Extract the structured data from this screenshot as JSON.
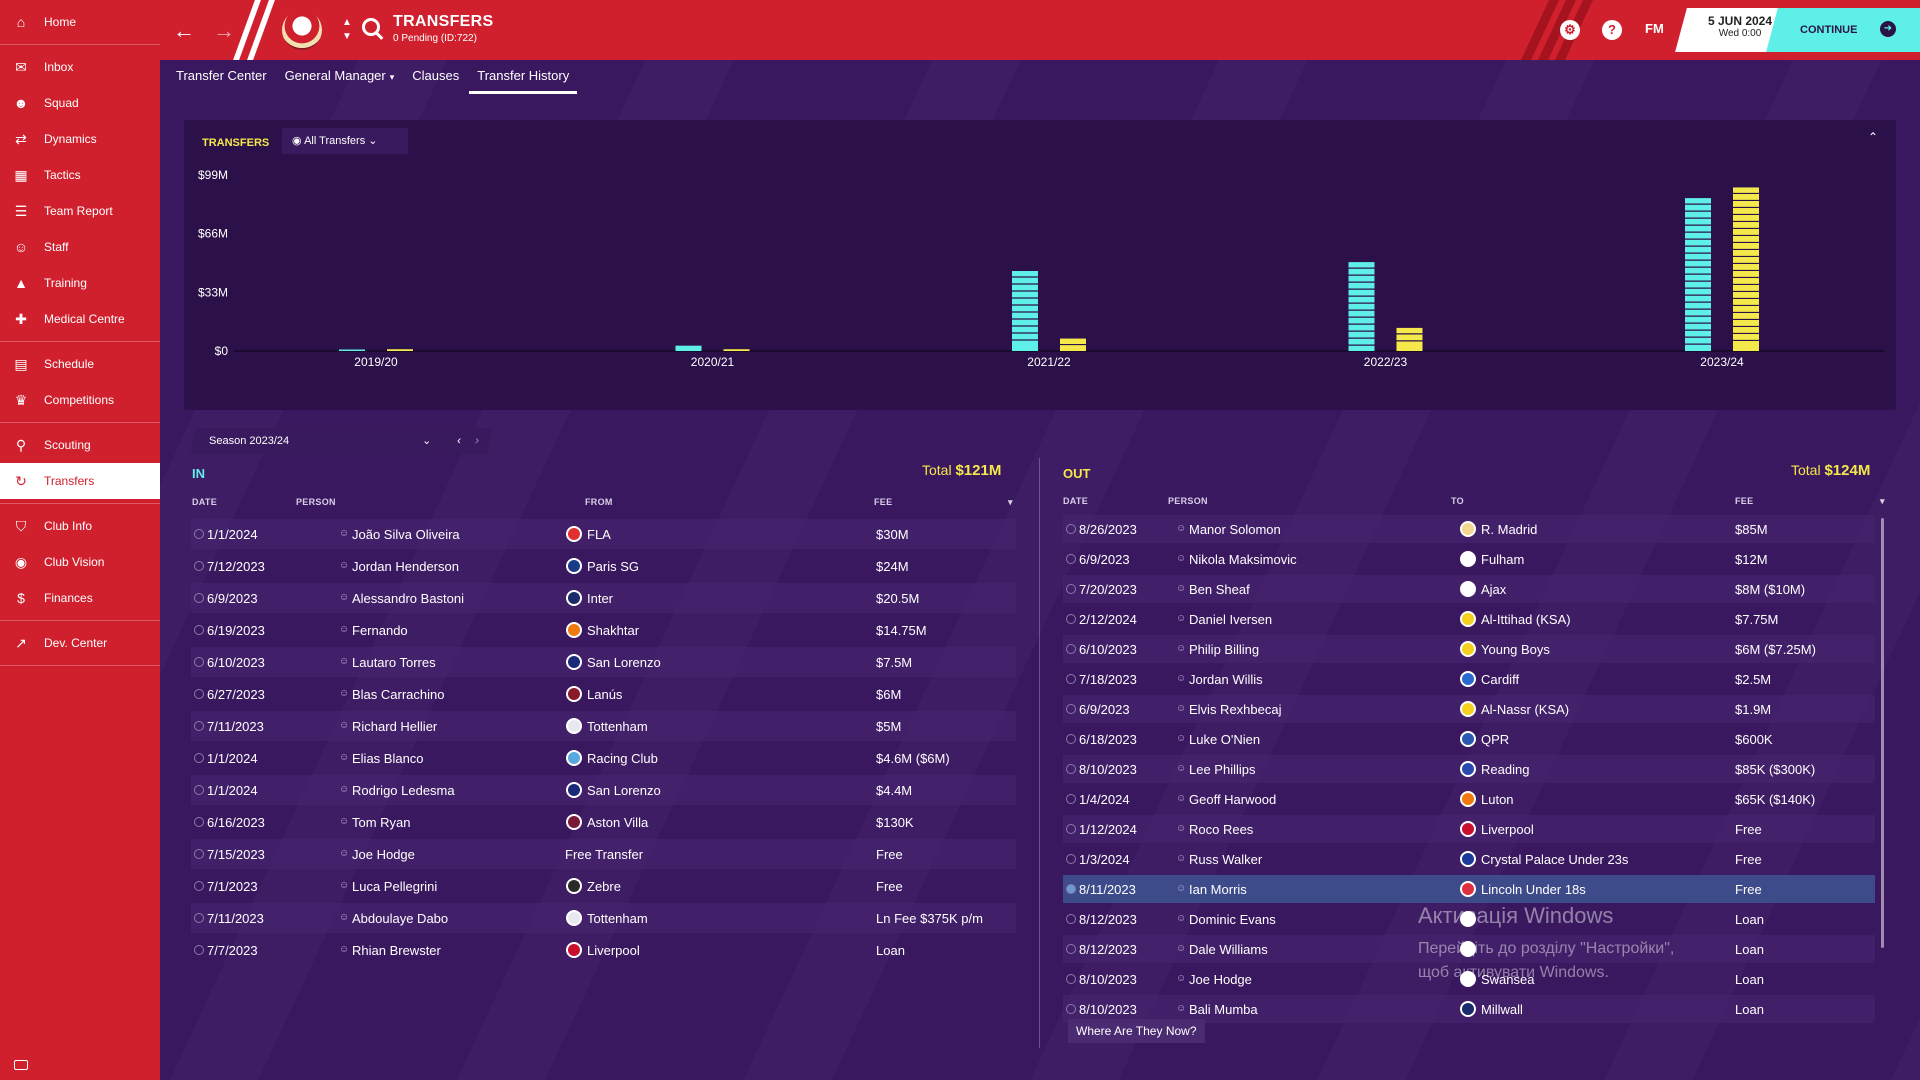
{
  "sidebar": {
    "groups": [
      [
        {
          "label": "Home",
          "icon": "home-icon"
        }
      ],
      [
        {
          "label": "Inbox",
          "icon": "inbox-icon"
        },
        {
          "label": "Squad",
          "icon": "squad-icon"
        },
        {
          "label": "Dynamics",
          "icon": "dynamics-icon"
        },
        {
          "label": "Tactics",
          "icon": "tactics-icon"
        },
        {
          "label": "Team Report",
          "icon": "report-icon"
        },
        {
          "label": "Staff",
          "icon": "staff-icon"
        },
        {
          "label": "Training",
          "icon": "training-icon"
        },
        {
          "label": "Medical Centre",
          "icon": "medical-icon"
        }
      ],
      [
        {
          "label": "Schedule",
          "icon": "calendar-icon"
        },
        {
          "label": "Competitions",
          "icon": "trophy-icon"
        }
      ],
      [
        {
          "label": "Scouting",
          "icon": "search-icon"
        },
        {
          "label": "Transfers",
          "icon": "transfers-icon",
          "active": true
        }
      ],
      [
        {
          "label": "Club Info",
          "icon": "shield-icon"
        },
        {
          "label": "Club Vision",
          "icon": "vision-icon"
        },
        {
          "label": "Finances",
          "icon": "money-icon"
        }
      ],
      [
        {
          "label": "Dev. Center",
          "icon": "growth-icon"
        }
      ]
    ]
  },
  "header": {
    "title": "TRANSFERS",
    "subtitle": "0 Pending (ID:722)",
    "fm_label": "FM",
    "date": "5 JUN 2024",
    "time": "Wed 0:00",
    "continue_label": "CONTINUE"
  },
  "tabs": [
    {
      "label": "Transfer Center",
      "dropdown": false
    },
    {
      "label": "General Manager",
      "dropdown": true
    },
    {
      "label": "Clauses",
      "dropdown": false
    },
    {
      "label": "Transfer History",
      "dropdown": false,
      "active": true
    }
  ],
  "chart_panel": {
    "title": "TRANSFERS",
    "filter_label": "All Transfers"
  },
  "chart_data": {
    "type": "bar",
    "categories": [
      "2019/20",
      "2020/21",
      "2021/22",
      "2022/23",
      "2023/24"
    ],
    "y_tick_labels": [
      "$99M",
      "$66M",
      "$33M",
      "$0"
    ],
    "ylim": [
      0,
      99
    ],
    "series": [
      {
        "color": "#5ef0e8",
        "values": [
          0.5,
          3,
          45,
          50,
          86
        ]
      },
      {
        "color": "#f4e84a",
        "values": [
          1,
          1,
          7,
          13,
          92
        ]
      }
    ]
  },
  "season": {
    "label": "Season 2023/24"
  },
  "in_table": {
    "title": "IN",
    "total_label": "Total",
    "total_value": "$121M",
    "columns": [
      "DATE",
      "PERSON",
      "FROM",
      "FEE"
    ],
    "rows": [
      {
        "date": "1/1/2024",
        "person": "João Silva Oliveira",
        "club": "FLA",
        "fee": "$30M",
        "club_color": "#e03030"
      },
      {
        "date": "7/12/2023",
        "person": "Jordan Henderson",
        "club": "Paris SG",
        "fee": "$24M",
        "club_color": "#1a3a8a"
      },
      {
        "date": "6/9/2023",
        "person": "Alessandro Bastoni",
        "club": "Inter",
        "fee": "$20.5M",
        "club_color": "#1a2a6a"
      },
      {
        "date": "6/19/2023",
        "person": "Fernando",
        "club": "Shakhtar",
        "fee": "$14.75M",
        "club_color": "#f07a10"
      },
      {
        "date": "6/10/2023",
        "person": "Lautaro Torres",
        "club": "San Lorenzo",
        "fee": "$7.5M",
        "club_color": "#1a2a7a"
      },
      {
        "date": "6/27/2023",
        "person": "Blas Carrachino",
        "club": "Lanús",
        "fee": "$6M",
        "club_color": "#8a1a2a"
      },
      {
        "date": "7/11/2023",
        "person": "Richard Hellier",
        "club": "Tottenham",
        "fee": "$5M",
        "club_color": "#e8e8f0"
      },
      {
        "date": "1/1/2024",
        "person": "Elias Blanco",
        "club": "Racing Club",
        "fee": "$4.6M ($6M)",
        "club_color": "#5aa8e0"
      },
      {
        "date": "1/1/2024",
        "person": "Rodrigo Ledesma",
        "club": "San Lorenzo",
        "fee": "$4.4M",
        "club_color": "#1a2a7a"
      },
      {
        "date": "6/16/2023",
        "person": "Tom Ryan",
        "club": "Aston Villa",
        "fee": "$130K",
        "club_color": "#7a1a3a"
      },
      {
        "date": "7/15/2023",
        "person": "Joe Hodge",
        "club": "Free Transfer",
        "fee": "Free",
        "club_color": ""
      },
      {
        "date": "7/1/2023",
        "person": "Luca Pellegrini",
        "club": "Zebre",
        "fee": "Free",
        "club_color": "#2a2a2a"
      },
      {
        "date": "7/11/2023",
        "person": "Abdoulaye Dabo",
        "club": "Tottenham",
        "fee": "Ln Fee $375K p/m",
        "club_color": "#e8e8f0"
      },
      {
        "date": "7/7/2023",
        "person": "Rhian Brewster",
        "club": "Liverpool",
        "fee": "Loan",
        "club_color": "#c8102e"
      }
    ]
  },
  "out_table": {
    "title": "OUT",
    "total_label": "Total",
    "total_value": "$124M",
    "columns": [
      "DATE",
      "PERSON",
      "TO",
      "FEE"
    ],
    "rows": [
      {
        "date": "8/26/2023",
        "person": "Manor Solomon",
        "club": "R. Madrid",
        "fee": "$85M",
        "club_color": "#f0d890"
      },
      {
        "date": "6/9/2023",
        "person": "Nikola Maksimovic",
        "club": "Fulham",
        "fee": "$12M",
        "club_color": "#ffffff"
      },
      {
        "date": "7/20/2023",
        "person": "Ben Sheaf",
        "club": "Ajax",
        "fee": "$8M ($10M)",
        "club_color": "#ffffff"
      },
      {
        "date": "2/12/2024",
        "person": "Daniel Iversen",
        "club": "Al-Ittihad (KSA)",
        "fee": "$7.75M",
        "club_color": "#f4d020"
      },
      {
        "date": "6/10/2023",
        "person": "Philip Billing",
        "club": "Young Boys",
        "fee": "$6M ($7.25M)",
        "club_color": "#f4d020"
      },
      {
        "date": "7/18/2023",
        "person": "Jordan Willis",
        "club": "Cardiff",
        "fee": "$2.5M",
        "club_color": "#2a6ad0"
      },
      {
        "date": "6/9/2023",
        "person": "Elvis Rexhbecaj",
        "club": "Al-Nassr (KSA)",
        "fee": "$1.9M",
        "club_color": "#f4d020"
      },
      {
        "date": "6/18/2023",
        "person": "Luke O'Nien",
        "club": "QPR",
        "fee": "$600K",
        "club_color": "#2a5ab0"
      },
      {
        "date": "8/10/2023",
        "person": "Lee Phillips",
        "club": "Reading",
        "fee": "$85K ($300K)",
        "club_color": "#2a4ab0"
      },
      {
        "date": "1/4/2024",
        "person": "Geoff Harwood",
        "club": "Luton",
        "fee": "$65K ($140K)",
        "club_color": "#f07a10"
      },
      {
        "date": "1/12/2024",
        "person": "Roco Rees",
        "club": "Liverpool",
        "fee": "Free",
        "club_color": "#c8102e"
      },
      {
        "date": "1/3/2024",
        "person": "Russ Walker",
        "club": "Crystal Palace Under 23s",
        "fee": "Free",
        "club_color": "#1a3a9a"
      },
      {
        "date": "8/11/2023",
        "person": "Ian Morris",
        "club": "Lincoln Under 18s",
        "fee": "Free",
        "club_color": "#e03040",
        "highlight": true
      },
      {
        "date": "8/12/2023",
        "person": "Dominic Evans",
        "club": "",
        "fee": "Loan",
        "club_color": "#ffffff"
      },
      {
        "date": "8/12/2023",
        "person": "Dale Williams",
        "club": "",
        "fee": "Loan",
        "club_color": "#ffffff"
      },
      {
        "date": "8/10/2023",
        "person": "Joe Hodge",
        "club": "Swansea",
        "fee": "Loan",
        "club_color": "#ffffff"
      },
      {
        "date": "8/10/2023",
        "person": "Bali Mumba",
        "club": "Millwall",
        "fee": "Loan",
        "club_color": "#1a2a6a"
      }
    ]
  },
  "where_button_label": "Where Are They Now?",
  "watermark": {
    "line1": "Активація Windows",
    "line2": "Перейдіть до розділу \"Настройки\", щоб активувати Windows."
  }
}
